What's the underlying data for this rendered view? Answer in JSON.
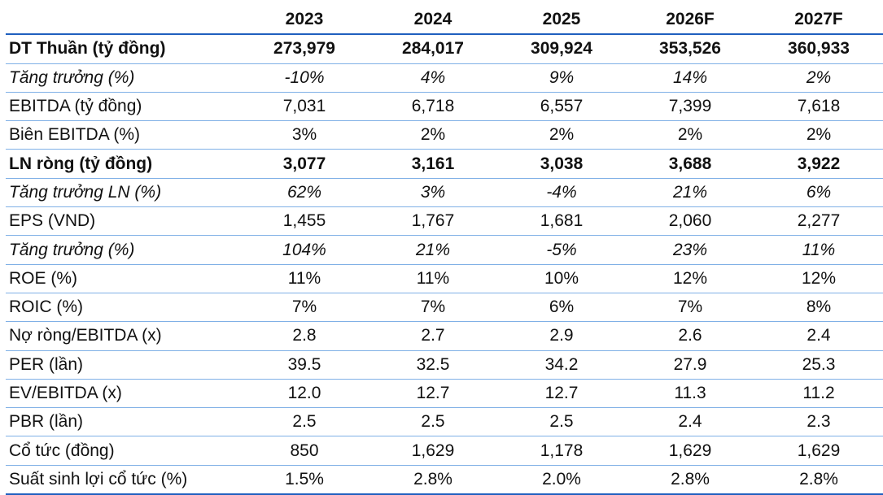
{
  "table": {
    "header": [
      "",
      "2023",
      "2024",
      "2025",
      "2026F",
      "2027F"
    ],
    "rows": [
      {
        "label": "DT Thuần (tỷ đồng)",
        "values": [
          "273,979",
          "284,017",
          "309,924",
          "353,526",
          "360,933"
        ],
        "style": "bold"
      },
      {
        "label": "Tăng trưởng (%)",
        "values": [
          "-10%",
          "4%",
          "9%",
          "14%",
          "2%"
        ],
        "style": "italic"
      },
      {
        "label": "EBITDA (tỷ đồng)",
        "values": [
          "7,031",
          "6,718",
          "6,557",
          "7,399",
          "7,618"
        ],
        "style": "normal"
      },
      {
        "label": "Biên EBITDA (%)",
        "values": [
          "3%",
          "2%",
          "2%",
          "2%",
          "2%"
        ],
        "style": "normal"
      },
      {
        "label": "LN ròng (tỷ đồng)",
        "values": [
          "3,077",
          "3,161",
          "3,038",
          "3,688",
          "3,922"
        ],
        "style": "bold"
      },
      {
        "label": "Tăng trưởng LN (%)",
        "values": [
          "62%",
          "3%",
          "-4%",
          "21%",
          "6%"
        ],
        "style": "italic"
      },
      {
        "label": "EPS (VND)",
        "values": [
          "1,455",
          "1,767",
          "1,681",
          "2,060",
          "2,277"
        ],
        "style": "normal"
      },
      {
        "label": "Tăng trưởng (%)",
        "values": [
          "104%",
          "21%",
          "-5%",
          "23%",
          "11%"
        ],
        "style": "italic"
      },
      {
        "label": "ROE (%)",
        "values": [
          "11%",
          "11%",
          "10%",
          "12%",
          "12%"
        ],
        "style": "normal"
      },
      {
        "label": "ROIC (%)",
        "values": [
          "7%",
          "7%",
          "6%",
          "7%",
          "8%"
        ],
        "style": "normal"
      },
      {
        "label": "Nợ ròng/EBITDA (x)",
        "values": [
          "2.8",
          "2.7",
          "2.9",
          "2.6",
          "2.4"
        ],
        "style": "normal"
      },
      {
        "label": "PER (lần)",
        "values": [
          "39.5",
          "32.5",
          "34.2",
          "27.9",
          "25.3"
        ],
        "style": "normal"
      },
      {
        "label": "EV/EBITDA (x)",
        "values": [
          "12.0",
          "12.7",
          "12.7",
          "11.3",
          "11.2"
        ],
        "style": "normal"
      },
      {
        "label": "PBR (lần)",
        "values": [
          "2.5",
          "2.5",
          "2.5",
          "2.4",
          "2.3"
        ],
        "style": "normal"
      },
      {
        "label": "Cổ tức (đồng)",
        "values": [
          "850",
          "1,629",
          "1,178",
          "1,629",
          "1,629"
        ],
        "style": "normal"
      },
      {
        "label": "Suất sinh lợi cổ tức (%)",
        "values": [
          "1.5%",
          "2.8%",
          "2.0%",
          "2.8%",
          "2.8%"
        ],
        "style": "normal"
      }
    ]
  },
  "colors": {
    "text": "#111111",
    "border_strong": "#1f5fbf",
    "border_light": "#7fb0e6"
  }
}
